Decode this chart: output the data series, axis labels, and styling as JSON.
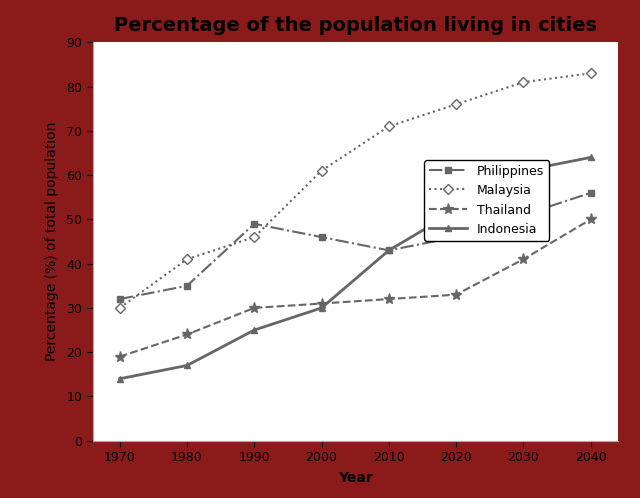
{
  "title": "Percentage of the population living in cities",
  "xlabel": "Year",
  "ylabel": "Percentage (%) of total population",
  "years": [
    1970,
    1980,
    1990,
    2000,
    2010,
    2020,
    2030,
    2040
  ],
  "philippines": [
    32,
    35,
    49,
    46,
    43,
    46,
    51,
    56
  ],
  "malaysia": [
    30,
    41,
    46,
    61,
    71,
    76,
    81,
    83
  ],
  "thailand": [
    19,
    24,
    30,
    31,
    32,
    33,
    41,
    50
  ],
  "indonesia": [
    14,
    17,
    25,
    30,
    43,
    52,
    61,
    64
  ],
  "line_color": "#666666",
  "ylim": [
    0,
    90
  ],
  "yticks": [
    0,
    10,
    20,
    30,
    40,
    50,
    60,
    70,
    80,
    90
  ],
  "xticks": [
    1970,
    1980,
    1990,
    2000,
    2010,
    2020,
    2030,
    2040
  ],
  "background_outer": "#8B1A1A",
  "background_inner": "#ffffff",
  "title_fontsize": 14,
  "axis_label_fontsize": 10,
  "tick_fontsize": 9,
  "legend_fontsize": 9
}
